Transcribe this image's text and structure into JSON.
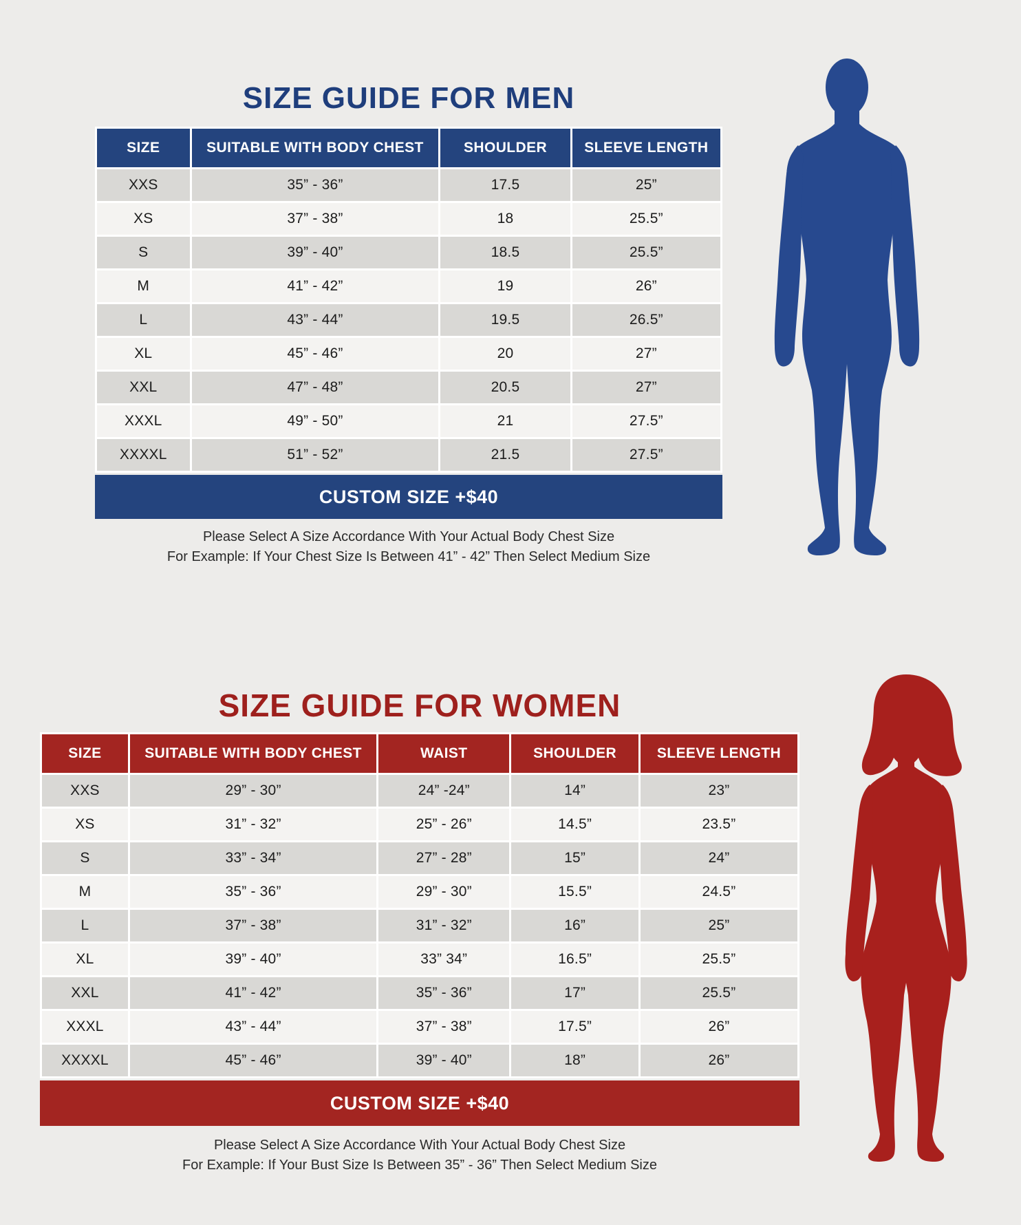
{
  "page": {
    "background": "#edecea"
  },
  "men": {
    "title": "SIZE GUIDE FOR MEN",
    "columns": [
      "SIZE",
      "SUITABLE WITH BODY CHEST",
      "SHOULDER",
      "SLEEVE LENGTH"
    ],
    "rows": [
      [
        "XXS",
        "35” - 36”",
        "17.5",
        "25”"
      ],
      [
        "XS",
        "37” - 38”",
        "18",
        "25.5”"
      ],
      [
        "S",
        "39” - 40”",
        "18.5",
        "25.5”"
      ],
      [
        "M",
        "41” - 42”",
        "19",
        "26”"
      ],
      [
        "L",
        "43” - 44”",
        "19.5",
        "26.5”"
      ],
      [
        "XL",
        "45” - 46”",
        "20",
        "27”"
      ],
      [
        "XXL",
        "47” - 48”",
        "20.5",
        "27”"
      ],
      [
        "XXXL",
        "49” - 50”",
        "21",
        "27.5”"
      ],
      [
        "XXXXL",
        "51” - 52”",
        "21.5",
        "27.5”"
      ]
    ],
    "custom_size_label": "CUSTOM SIZE +$40",
    "notes": [
      "Please Select A Size Accordance With Your Actual Body Chest Size",
      "For Example: If Your Chest Size Is Between 41” - 42” Then Select Medium Size"
    ],
    "colors": {
      "accent": "#24447e",
      "title": "#1f3e7c",
      "silhouette": "#27498f"
    }
  },
  "women": {
    "title": "SIZE GUIDE FOR WOMEN",
    "columns": [
      "SIZE",
      "SUITABLE WITH BODY CHEST",
      "WAIST",
      "SHOULDER",
      "SLEEVE LENGTH"
    ],
    "rows": [
      [
        "XXS",
        "29” - 30”",
        "24” -24”",
        "14”",
        "23”"
      ],
      [
        "XS",
        "31” - 32”",
        "25” - 26”",
        "14.5”",
        "23.5”"
      ],
      [
        "S",
        "33” - 34”",
        "27” - 28”",
        "15”",
        "24”"
      ],
      [
        "M",
        "35” - 36”",
        "29” - 30”",
        "15.5”",
        "24.5”"
      ],
      [
        "L",
        "37” - 38”",
        "31” - 32”",
        "16”",
        "25”"
      ],
      [
        "XL",
        "39” - 40”",
        "33” 34”",
        "16.5”",
        "25.5”"
      ],
      [
        "XXL",
        "41” - 42”",
        "35” - 36”",
        "17”",
        "25.5”"
      ],
      [
        "XXXL",
        "43” - 44”",
        "37” - 38”",
        "17.5”",
        "26”"
      ],
      [
        "XXXXL",
        "45” - 46”",
        "39” - 40”",
        "18”",
        "26”"
      ]
    ],
    "custom_size_label": "CUSTOM SIZE +$40",
    "notes": [
      "Please Select A Size Accordance With Your Actual Body Chest Size",
      "For Example: If Your Bust Size Is Between 35” - 36” Then Select Medium Size"
    ],
    "colors": {
      "accent": "#a32521",
      "title": "#9e201d",
      "silhouette": "#a8201d"
    }
  },
  "chart_data": [
    {
      "type": "table",
      "title": "SIZE GUIDE FOR MEN",
      "columns": [
        "SIZE",
        "SUITABLE WITH BODY CHEST",
        "SHOULDER",
        "SLEEVE LENGTH"
      ],
      "rows": [
        [
          "XXS",
          "35” - 36”",
          "17.5",
          "25”"
        ],
        [
          "XS",
          "37” - 38”",
          "18",
          "25.5”"
        ],
        [
          "S",
          "39” - 40”",
          "18.5",
          "25.5”"
        ],
        [
          "M",
          "41” - 42”",
          "19",
          "26”"
        ],
        [
          "L",
          "43” - 44”",
          "19.5",
          "26.5”"
        ],
        [
          "XL",
          "45” - 46”",
          "20",
          "27”"
        ],
        [
          "XXL",
          "47” - 48”",
          "20.5",
          "27”"
        ],
        [
          "XXXL",
          "49” - 50”",
          "21",
          "27.5”"
        ],
        [
          "XXXXL",
          "51” - 52”",
          "21.5",
          "27.5”"
        ]
      ],
      "footer": "CUSTOM SIZE +$40",
      "annotations": [
        "Please Select A Size Accordance With Your Actual Body Chest Size",
        "For Example: If Your Chest Size Is Between 41” - 42” Then Select Medium Size"
      ]
    },
    {
      "type": "table",
      "title": "SIZE GUIDE FOR WOMEN",
      "columns": [
        "SIZE",
        "SUITABLE WITH BODY CHEST",
        "WAIST",
        "SHOULDER",
        "SLEEVE LENGTH"
      ],
      "rows": [
        [
          "XXS",
          "29” - 30”",
          "24” -24”",
          "14”",
          "23”"
        ],
        [
          "XS",
          "31” - 32”",
          "25” - 26”",
          "14.5”",
          "23.5”"
        ],
        [
          "S",
          "33” - 34”",
          "27” - 28”",
          "15”",
          "24”"
        ],
        [
          "M",
          "35” - 36”",
          "29” - 30”",
          "15.5”",
          "24.5”"
        ],
        [
          "L",
          "37” - 38”",
          "31” - 32”",
          "16”",
          "25”"
        ],
        [
          "XL",
          "39” - 40”",
          "33” 34”",
          "16.5”",
          "25.5”"
        ],
        [
          "XXL",
          "41” - 42”",
          "35” - 36”",
          "17”",
          "25.5”"
        ],
        [
          "XXXL",
          "43” - 44”",
          "37” - 38”",
          "17.5”",
          "26”"
        ],
        [
          "XXXXL",
          "45” - 46”",
          "39” - 40”",
          "18”",
          "26”"
        ]
      ],
      "footer": "CUSTOM SIZE +$40",
      "annotations": [
        "Please Select A Size Accordance With Your Actual Body Chest Size",
        "For Example: If Your Bust Size Is Between 35” - 36” Then Select Medium Size"
      ]
    }
  ]
}
